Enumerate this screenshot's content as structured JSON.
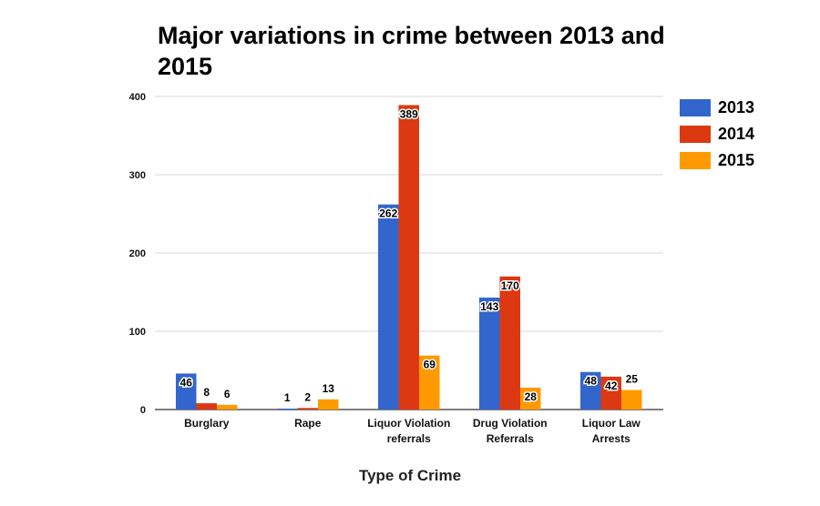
{
  "chart_data": {
    "type": "bar",
    "title": "Major variations in crime between 2013 and 2015",
    "xlabel": "Type of Crime",
    "ylabel": "",
    "ylim": [
      0,
      400
    ],
    "yticks": [
      0,
      100,
      200,
      300,
      400
    ],
    "grid": true,
    "legend_position": "right",
    "categories": [
      [
        "Burglary"
      ],
      [
        "Rape"
      ],
      [
        "Liquor Violation",
        "referrals"
      ],
      [
        "Drug Violation",
        "Referrals"
      ],
      [
        "Liquor Law",
        "Arrests"
      ]
    ],
    "series": [
      {
        "name": "2013",
        "color": "#3366cc",
        "values": [
          46,
          1,
          262,
          143,
          48
        ]
      },
      {
        "name": "2014",
        "color": "#dc3912",
        "values": [
          8,
          2,
          389,
          170,
          42
        ]
      },
      {
        "name": "2015",
        "color": "#ff9900",
        "values": [
          6,
          13,
          69,
          28,
          25
        ]
      }
    ]
  }
}
